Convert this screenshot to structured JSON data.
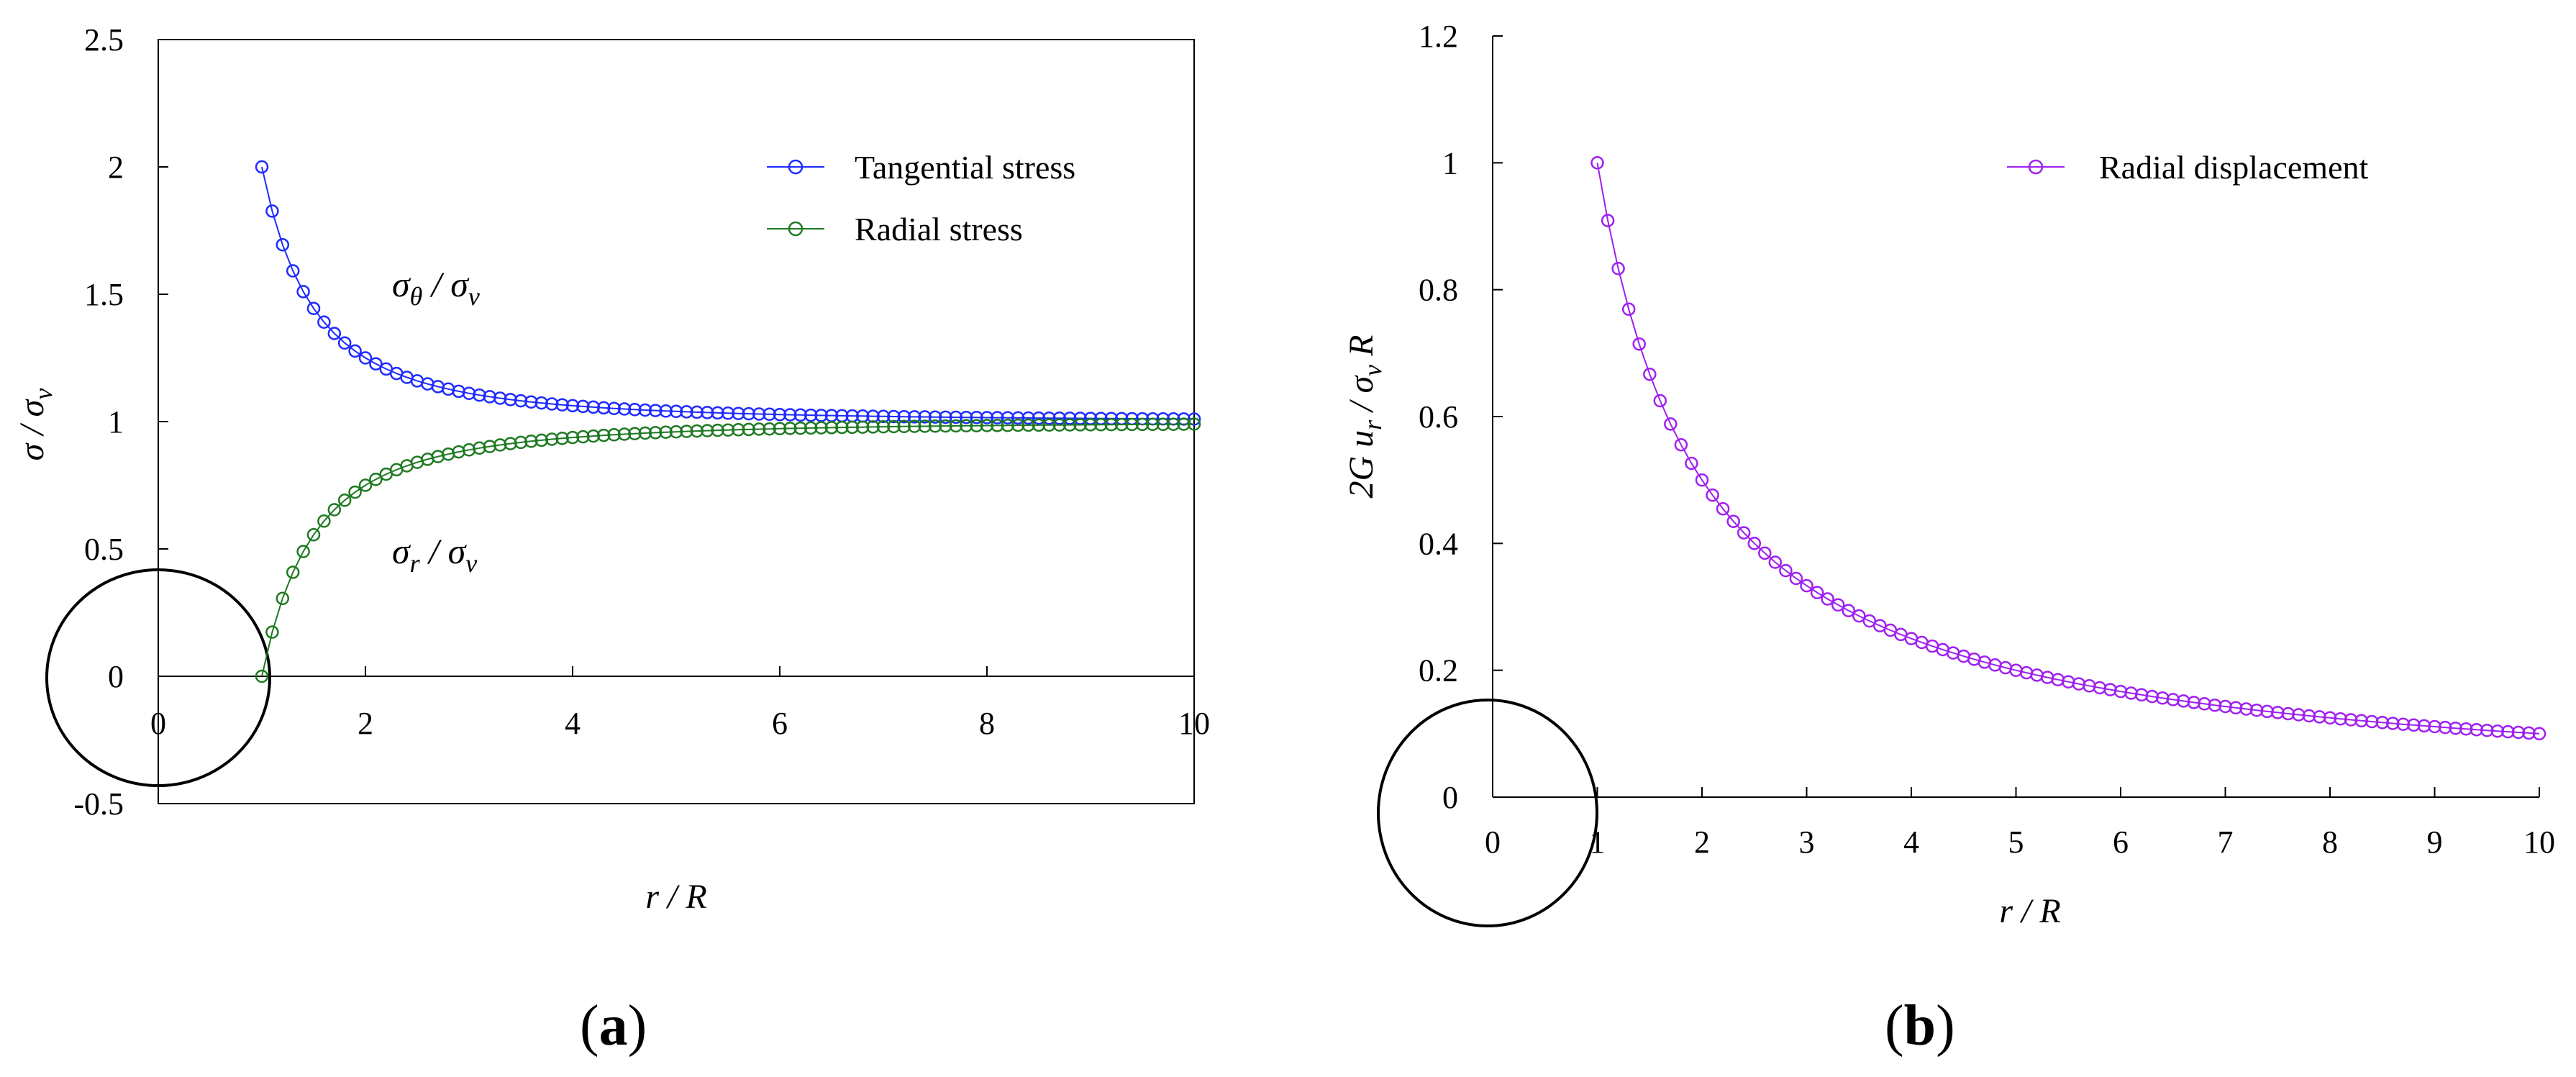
{
  "colors": {
    "tangential": "#1f2bff",
    "radial": "#1f7a22",
    "displacement": "#a020f0",
    "axis": "#000000"
  },
  "panels": {
    "a": {
      "label_open": "(",
      "label_letter": "a",
      "label_close": ")",
      "y_label_main": "σ / σ",
      "y_label_sub": "v",
      "x_label": "r / R",
      "legend": [
        "Tangential stress",
        "Radial stress"
      ],
      "annotation_theta_main": "σ",
      "annotation_theta_sub": "θ",
      "annotation_theta_rest": " / σ",
      "annotation_theta_sub2": "v",
      "annotation_r_main": "σ",
      "annotation_r_sub": "r",
      "annotation_r_rest": " / σ",
      "annotation_r_sub2": "v"
    },
    "b": {
      "label_open": "(",
      "label_letter": "b",
      "label_close": ")",
      "y_label_pre": "2G u",
      "y_label_sub1": "r",
      "y_label_mid": " / σ",
      "y_label_sub2": "v",
      "y_label_post": " R",
      "x_label": "r / R",
      "legend": [
        "Radial displacement"
      ]
    }
  },
  "chart_data": [
    {
      "type": "line",
      "panel": "a",
      "title": "",
      "xlabel": "r / R",
      "ylabel": "σ / σv",
      "xlim": [
        0,
        10
      ],
      "ylim": [
        -0.5,
        2.5
      ],
      "xticks": [
        0,
        2,
        4,
        6,
        8,
        10
      ],
      "yticks": [
        -0.5,
        0,
        0.5,
        1,
        1.5,
        2,
        2.5
      ],
      "xtick_labels": [
        "0",
        "2",
        "4",
        "6",
        "8",
        "10"
      ],
      "ytick_labels": [
        "-0.5",
        "0",
        "0.5",
        "1",
        "1.5",
        "2",
        "2.5"
      ],
      "x_start": 1,
      "x_step": 0.1,
      "point_count": 91,
      "series": [
        {
          "name": "Tangential stress",
          "formula": "1 + 1/r^2",
          "values_at": {
            "1": 2.0,
            "2": 1.25,
            "4": 1.0625,
            "10": 1.01
          }
        },
        {
          "name": "Radial stress",
          "formula": "1 - 1/r^2",
          "values_at": {
            "1": 0.0,
            "2": 0.75,
            "4": 0.9375,
            "10": 0.99
          }
        }
      ],
      "legend_position": "top-right",
      "annotations": [
        "σθ / σv",
        "σr / σv"
      ]
    },
    {
      "type": "line",
      "panel": "b",
      "title": "",
      "xlabel": "r / R",
      "ylabel": "2G ur / σv R",
      "xlim": [
        0,
        10
      ],
      "ylim": [
        0,
        1.2
      ],
      "xticks": [
        0,
        1,
        2,
        3,
        4,
        5,
        6,
        7,
        8,
        9,
        10
      ],
      "yticks": [
        0,
        0.2,
        0.4,
        0.6,
        0.8,
        1,
        1.2
      ],
      "xtick_labels": [
        "0",
        "1",
        "2",
        "3",
        "4",
        "5",
        "6",
        "7",
        "8",
        "9",
        "10"
      ],
      "ytick_labels": [
        "0",
        "0.2",
        "0.4",
        "0.6",
        "0.8",
        "1",
        "1.2"
      ],
      "x_start": 1,
      "x_step": 0.1,
      "point_count": 91,
      "series": [
        {
          "name": "Radial displacement",
          "formula": "1/r",
          "values_at": {
            "1": 1.0,
            "2": 0.5,
            "4": 0.25,
            "10": 0.1
          }
        }
      ],
      "legend_position": "top-right"
    }
  ]
}
